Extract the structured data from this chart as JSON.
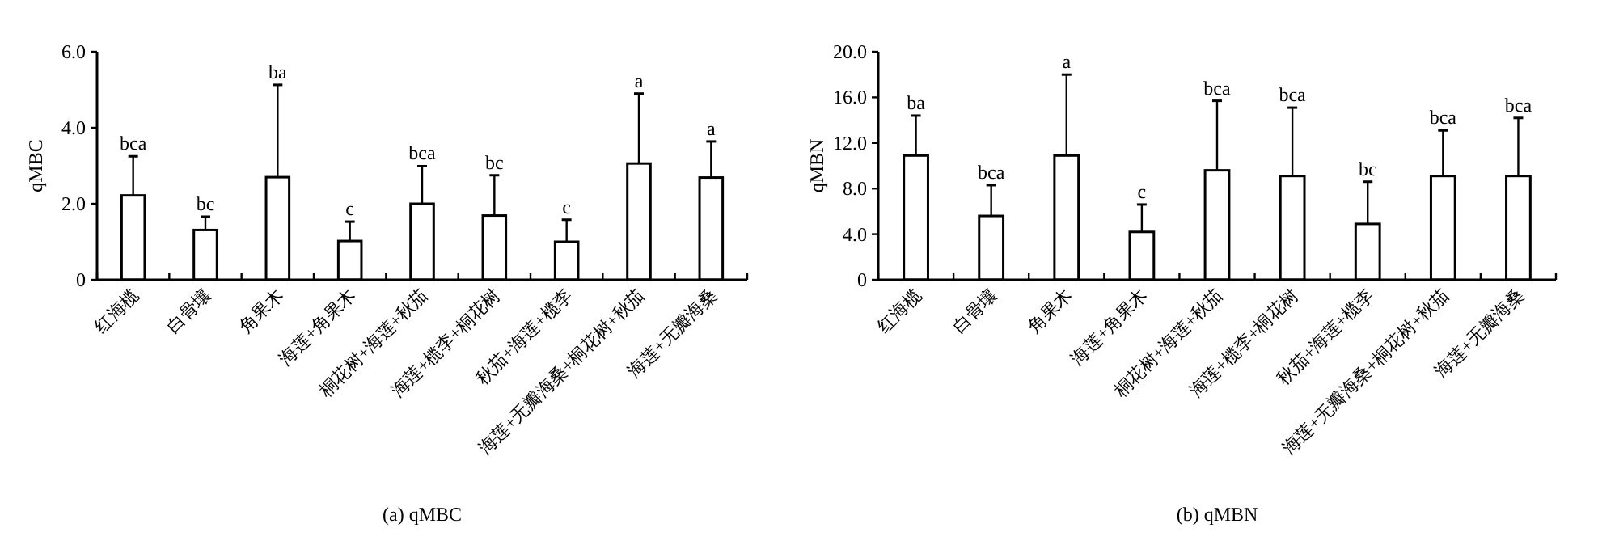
{
  "chart_data": [
    {
      "type": "bar",
      "title": "(a) qMBC",
      "ylabel": "qMBC",
      "categories": [
        "红海榄",
        "白骨壤",
        "角果木",
        "海莲+角果木",
        "桐花树+海莲+秋茄",
        "海莲+榄李+桐花树",
        "秋茄+海莲+榄李",
        "海莲+无瓣海桑+桐花树+秋茄",
        "海莲+无瓣海桑"
      ],
      "series": [
        {
          "color": "#ffffff",
          "values": [
            2.22,
            1.31,
            2.7,
            1.02,
            2.0,
            1.69,
            1.0,
            3.06,
            2.69
          ],
          "errors": [
            [
              2.22,
              3.25
            ],
            [
              1.31,
              1.66
            ],
            [
              2.7,
              5.13
            ],
            [
              1.02,
              1.53
            ],
            [
              2.0,
              2.99
            ],
            [
              1.69,
              2.75
            ],
            [
              1.0,
              1.58
            ],
            [
              3.06,
              4.9
            ],
            [
              2.69,
              3.64
            ]
          ]
        }
      ],
      "ylim": [
        0,
        6
      ],
      "yticks": [
        0,
        {
          "value": 2,
          "label": "2.0"
        },
        {
          "value": 4,
          "label": "4.0"
        },
        {
          "value": 6,
          "label": "6.0"
        }
      ],
      "annotations": [
        {
          "text": "bca",
          "x": "红海榄",
          "y": 3.25
        },
        {
          "text": "bc",
          "x": "白骨壤",
          "y": 1.66
        },
        {
          "text": "ba",
          "x": "角果木",
          "y": 5.13
        },
        {
          "text": "c",
          "x": "海莲+角果木",
          "y": 1.53
        },
        {
          "text": "bca",
          "x": "桐花树+海莲+秋茄",
          "y": 2.99
        },
        {
          "text": "bc",
          "x": "海莲+榄李+桐花树",
          "y": 2.75
        },
        {
          "text": "c",
          "x": "秋茄+海莲+榄李",
          "y": 1.58
        },
        {
          "text": "a",
          "x": "海莲+无瓣海桑+桐花树+秋茄",
          "y": 4.9
        },
        {
          "text": "a",
          "x": "海莲+无瓣海桑",
          "y": 3.64
        }
      ]
    },
    {
      "type": "bar",
      "title": "(b) qMBN",
      "ylabel": "qMBN",
      "categories": [
        "红海榄",
        "白骨壤",
        "角果木",
        "海莲+角果木",
        "桐花树+海莲+秋茄",
        "海莲+榄李+桐花树",
        "秋茄+海莲+榄李",
        "海莲+无瓣海桑+桐花树+秋茄",
        "海莲+无瓣海桑"
      ],
      "series": [
        {
          "color": "#ffffff",
          "values": [
            10.9,
            5.6,
            10.9,
            4.2,
            9.6,
            9.1,
            4.9,
            9.1,
            9.1
          ],
          "errors": [
            [
              10.9,
              14.4
            ],
            [
              5.6,
              8.3
            ],
            [
              10.9,
              18.0
            ],
            [
              4.2,
              6.6
            ],
            [
              9.6,
              15.7
            ],
            [
              9.1,
              15.1
            ],
            [
              4.9,
              8.6
            ],
            [
              9.1,
              13.1
            ],
            [
              9.1,
              14.2
            ]
          ]
        }
      ],
      "ylim": [
        0,
        20
      ],
      "yticks": [
        0,
        {
          "value": 4,
          "label": "4.0"
        },
        {
          "value": 8,
          "label": "8.0"
        },
        {
          "value": 12,
          "label": "12.0"
        },
        {
          "value": 16,
          "label": "16.0"
        },
        {
          "value": 20,
          "label": "20.0"
        }
      ],
      "annotations": [
        {
          "text": "ba",
          "x": "红海榄",
          "y": 14.4
        },
        {
          "text": "bca",
          "x": "白骨壤",
          "y": 8.3
        },
        {
          "text": "a",
          "x": "角果木",
          "y": 18.0
        },
        {
          "text": "c",
          "x": "海莲+角果木",
          "y": 6.6
        },
        {
          "text": "bca",
          "x": "桐花树+海莲+秋茄",
          "y": 15.7
        },
        {
          "text": "bca",
          "x": "海莲+榄李+桐花树",
          "y": 15.1
        },
        {
          "text": "bc",
          "x": "秋茄+海莲+榄李",
          "y": 8.6
        },
        {
          "text": "bca",
          "x": "海莲+无瓣海桑+桐花树+秋茄",
          "y": 13.1
        },
        {
          "text": "bca",
          "x": "海莲+无瓣海桑",
          "y": 14.2
        }
      ]
    }
  ]
}
